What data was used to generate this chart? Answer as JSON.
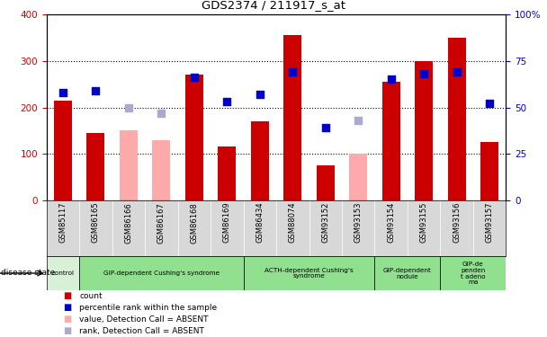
{
  "title": "GDS2374 / 211917_s_at",
  "samples": [
    "GSM85117",
    "GSM86165",
    "GSM86166",
    "GSM86167",
    "GSM86168",
    "GSM86169",
    "GSM86434",
    "GSM88074",
    "GSM93152",
    "GSM93153",
    "GSM93154",
    "GSM93155",
    "GSM93156",
    "GSM93157"
  ],
  "count_values": [
    215,
    145,
    null,
    null,
    270,
    115,
    170,
    355,
    75,
    null,
    255,
    300,
    350,
    125
  ],
  "count_absent": [
    null,
    null,
    150,
    130,
    null,
    null,
    null,
    null,
    null,
    100,
    null,
    null,
    null,
    null
  ],
  "rank_values": [
    58,
    59,
    null,
    null,
    66,
    53,
    57,
    69,
    39,
    null,
    65,
    68,
    69,
    52
  ],
  "rank_absent": [
    null,
    null,
    50,
    47,
    null,
    null,
    null,
    null,
    null,
    43,
    null,
    null,
    null,
    null
  ],
  "ylim_left": [
    0,
    400
  ],
  "ylim_right": [
    0,
    100
  ],
  "yticks_left": [
    0,
    100,
    200,
    300,
    400
  ],
  "yticks_right": [
    0,
    25,
    50,
    75,
    100
  ],
  "bar_color_present": "#cc0000",
  "bar_color_absent": "#ffaaaa",
  "dot_color_present": "#0000cc",
  "dot_color_absent": "#aaaacc",
  "groups": [
    {
      "label": "control",
      "start": 0,
      "end": 1,
      "color": "#d8f0d8"
    },
    {
      "label": "GIP-dependent Cushing's syndrome",
      "start": 1,
      "end": 6,
      "color": "#90e090"
    },
    {
      "label": "ACTH-dependent Cushing's\nsyndrome",
      "start": 6,
      "end": 10,
      "color": "#90e090"
    },
    {
      "label": "GIP-dependent\nnodule",
      "start": 10,
      "end": 12,
      "color": "#90e090"
    },
    {
      "label": "GIP-de\npenden\nt adeno\nma",
      "start": 12,
      "end": 14,
      "color": "#90e090"
    }
  ],
  "tick_label_color_left": "#cc0000",
  "tick_label_color_right": "#0000cc",
  "xtick_bg": "#d8d8d8"
}
